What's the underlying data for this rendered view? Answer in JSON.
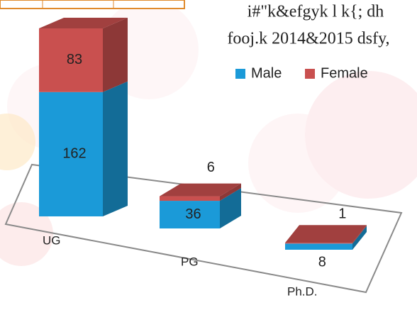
{
  "chart_data": {
    "type": "bar",
    "stacked": true,
    "title": [
      "i#\"k&efgyk l k{; dh",
      "fooj.k 2014&2015 dsfy,"
    ],
    "categories": [
      "UG",
      "PG",
      "Ph.D."
    ],
    "series": [
      {
        "name": "Male",
        "color": "#1b9ad8",
        "values": [
          162,
          36,
          8
        ]
      },
      {
        "name": "Female",
        "color": "#c9504f",
        "values": [
          83,
          6,
          1
        ]
      }
    ],
    "legend": "top-right"
  }
}
